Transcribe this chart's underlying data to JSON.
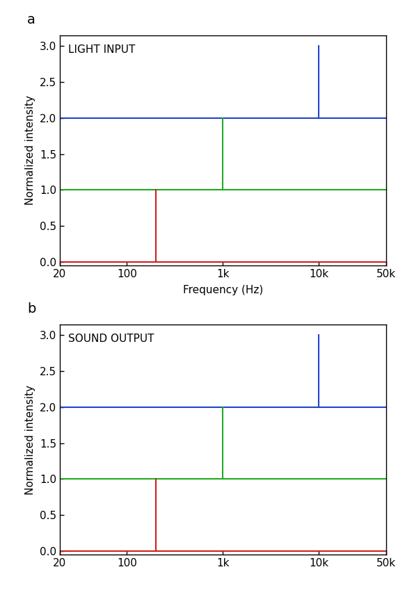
{
  "panel_a_title": "LIGHT INPUT",
  "panel_b_title": "SOUND OUTPUT",
  "xlabel": "Frequency (Hz)",
  "ylabel": "Normalized intensity",
  "panel_label_a": "a",
  "panel_label_b": "b",
  "xmin": 20,
  "xmax": 50000,
  "ymin": -0.05,
  "ymax": 3.15,
  "yticks": [
    0.0,
    0.5,
    1.0,
    1.5,
    2.0,
    2.5,
    3.0
  ],
  "xtick_positions": [
    20,
    100,
    1000,
    10000,
    50000
  ],
  "xtick_labels": [
    "20",
    "100",
    "1k",
    "10k",
    "50k"
  ],
  "hline_red_y": 0.0,
  "hline_green_y": 1.0,
  "hline_blue_y": 2.0,
  "red_color": "#cc2222",
  "green_color": "#22aa22",
  "blue_color": "#2244cc",
  "red_spike_x": 200,
  "red_spike_height": 1.0,
  "green_spike_x": 1000,
  "green_spike_height": 2.0,
  "blue_spike_x": 10000,
  "blue_spike_height": 3.0,
  "hline_lw": 1.5,
  "spike_lw": 1.5,
  "figsize": [
    5.72,
    8.49
  ],
  "dpi": 100
}
